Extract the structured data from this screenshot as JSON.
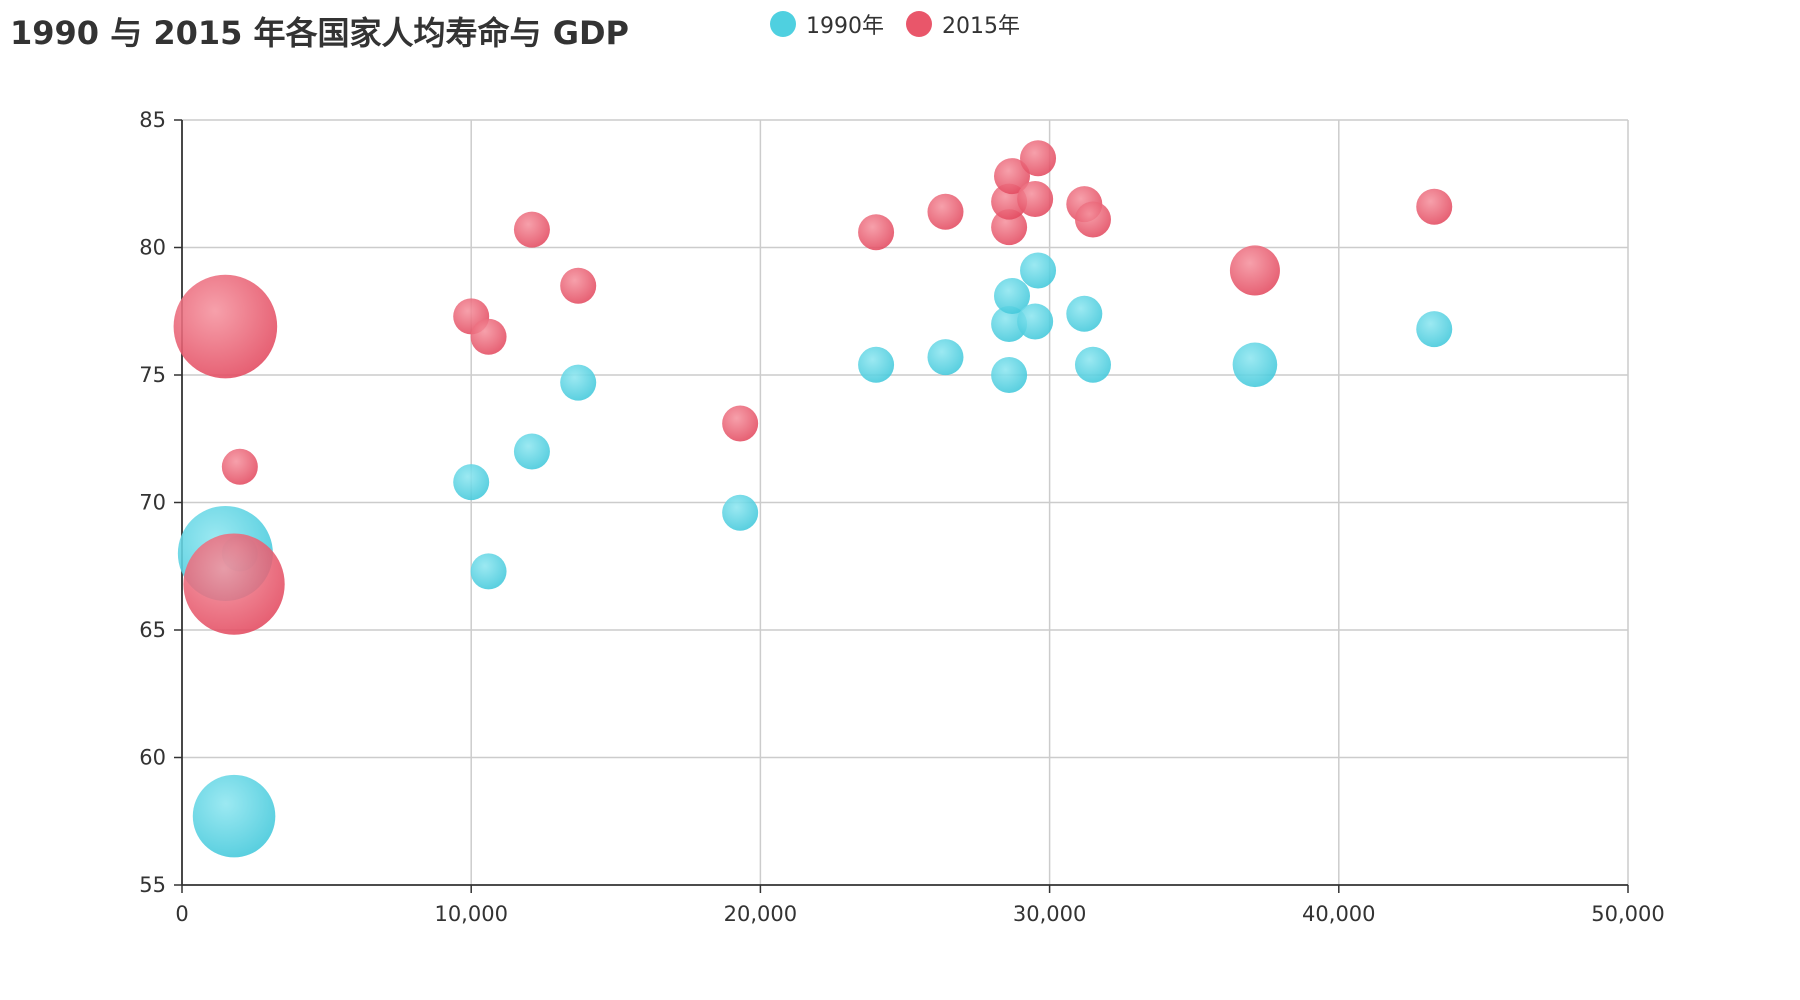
{
  "title": "1990 与 2015 年各国家人均寿命与 GDP",
  "colors": {
    "1990": "#4fd0e0",
    "2015": "#e9566a",
    "grid": "#cccccc",
    "axis": "#333333"
  },
  "legend": [
    {
      "label": "1990年",
      "color_key": "1990"
    },
    {
      "label": "2015年",
      "color_key": "2015"
    }
  ],
  "chart_data": {
    "type": "scatter",
    "subtype": "bubble",
    "title": "1990 与 2015 年各国家人均寿命与 GDP",
    "xlabel": "",
    "ylabel": "",
    "xlim": [
      0,
      50000
    ],
    "ylim": [
      55,
      85
    ],
    "x_ticks": [
      "0",
      "10,000",
      "20,000",
      "30,000",
      "40,000",
      "50,000"
    ],
    "y_ticks": [
      "55",
      "60",
      "65",
      "70",
      "75",
      "80",
      "85"
    ],
    "grid": true,
    "legend_position": "top",
    "size_encoding": "population",
    "series": [
      {
        "name": "1990年",
        "color_key": "1990",
        "points": [
          {
            "x": 1500,
            "y": 68.0,
            "size": 1154605773
          },
          {
            "x": 1800,
            "y": 57.7,
            "size": 870601776
          },
          {
            "x": 2000,
            "y": 68.0,
            "size": 5000000
          },
          {
            "x": 10000,
            "y": 70.8,
            "size": 38195258
          },
          {
            "x": 10600,
            "y": 67.3,
            "size": 147568552
          },
          {
            "x": 12100,
            "y": 72.0,
            "size": 53994605
          },
          {
            "x": 13700,
            "y": 74.7,
            "size": 42972254
          },
          {
            "x": 19300,
            "y": 69.6,
            "size": 162000000
          },
          {
            "x": 24000,
            "y": 75.4,
            "size": 38000000
          },
          {
            "x": 26400,
            "y": 75.7,
            "size": 58000000
          },
          {
            "x": 28600,
            "y": 75.0,
            "size": 35000000
          },
          {
            "x": 28600,
            "y": 77.0,
            "size": 60000000
          },
          {
            "x": 28700,
            "y": 78.1,
            "size": 57000000
          },
          {
            "x": 29500,
            "y": 77.1,
            "size": 80000000
          },
          {
            "x": 29600,
            "y": 79.1,
            "size": 123000000
          },
          {
            "x": 31200,
            "y": 77.4,
            "size": 40000000
          },
          {
            "x": 31500,
            "y": 75.4,
            "size": 78000000
          },
          {
            "x": 37100,
            "y": 75.4,
            "size": 254000000
          },
          {
            "x": 43300,
            "y": 76.8,
            "size": 4200000
          }
        ]
      },
      {
        "name": "2015年",
        "color_key": "2015",
        "points": [
          {
            "x": 1500,
            "y": 76.9,
            "size": 1371220000
          },
          {
            "x": 1800,
            "y": 66.8,
            "size": 1311050527
          },
          {
            "x": 2000,
            "y": 71.4,
            "size": 5000000
          },
          {
            "x": 10000,
            "y": 77.3,
            "size": 46000000
          },
          {
            "x": 10600,
            "y": 76.5,
            "size": 79000000
          },
          {
            "x": 12100,
            "y": 80.7,
            "size": 48000000
          },
          {
            "x": 13700,
            "y": 78.5,
            "size": 43000000
          },
          {
            "x": 19300,
            "y": 73.1,
            "size": 145000000
          },
          {
            "x": 24000,
            "y": 80.6,
            "size": 38000000
          },
          {
            "x": 26400,
            "y": 81.4,
            "size": 60000000
          },
          {
            "x": 28600,
            "y": 80.8,
            "size": 35000000
          },
          {
            "x": 28600,
            "y": 81.8,
            "size": 50000000
          },
          {
            "x": 28700,
            "y": 82.8,
            "size": 46000000
          },
          {
            "x": 29500,
            "y": 81.9,
            "size": 64000000
          },
          {
            "x": 29600,
            "y": 83.5,
            "size": 127000000
          },
          {
            "x": 31200,
            "y": 81.7,
            "size": 50000000
          },
          {
            "x": 31500,
            "y": 81.1,
            "size": 82000000
          },
          {
            "x": 37100,
            "y": 79.1,
            "size": 320000000
          },
          {
            "x": 43300,
            "y": 81.6,
            "size": 5000000
          }
        ]
      }
    ]
  }
}
